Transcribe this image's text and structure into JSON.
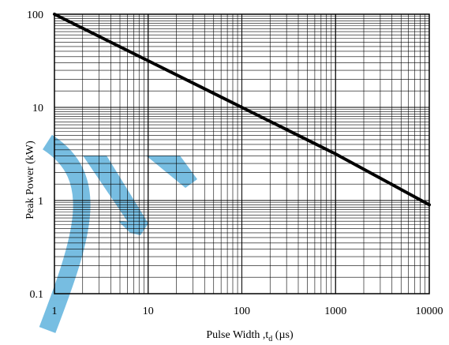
{
  "chart_data": {
    "type": "line",
    "title": "",
    "xlabel": "Pulse Width ,t",
    "xlabel_subscript": "d",
    "xlabel_unit": " (µs)",
    "ylabel": "Peak Power  (kW)",
    "x_scale": "log",
    "y_scale": "log",
    "xlim": [
      1,
      10000
    ],
    "ylim": [
      0.1,
      100
    ],
    "x_tick_labels": [
      "1",
      "10",
      "100",
      "1000",
      "10000"
    ],
    "y_tick_labels": [
      "0.1",
      "1",
      "10",
      "100"
    ],
    "grid": true,
    "legend": "none",
    "series": [
      {
        "x": [
          1,
          10,
          100,
          1000,
          10000
        ],
        "y": [
          100,
          31.6,
          10,
          3.16,
          0.9
        ]
      }
    ],
    "line_color": "#000000",
    "watermark_color": "#4aa8d8"
  }
}
